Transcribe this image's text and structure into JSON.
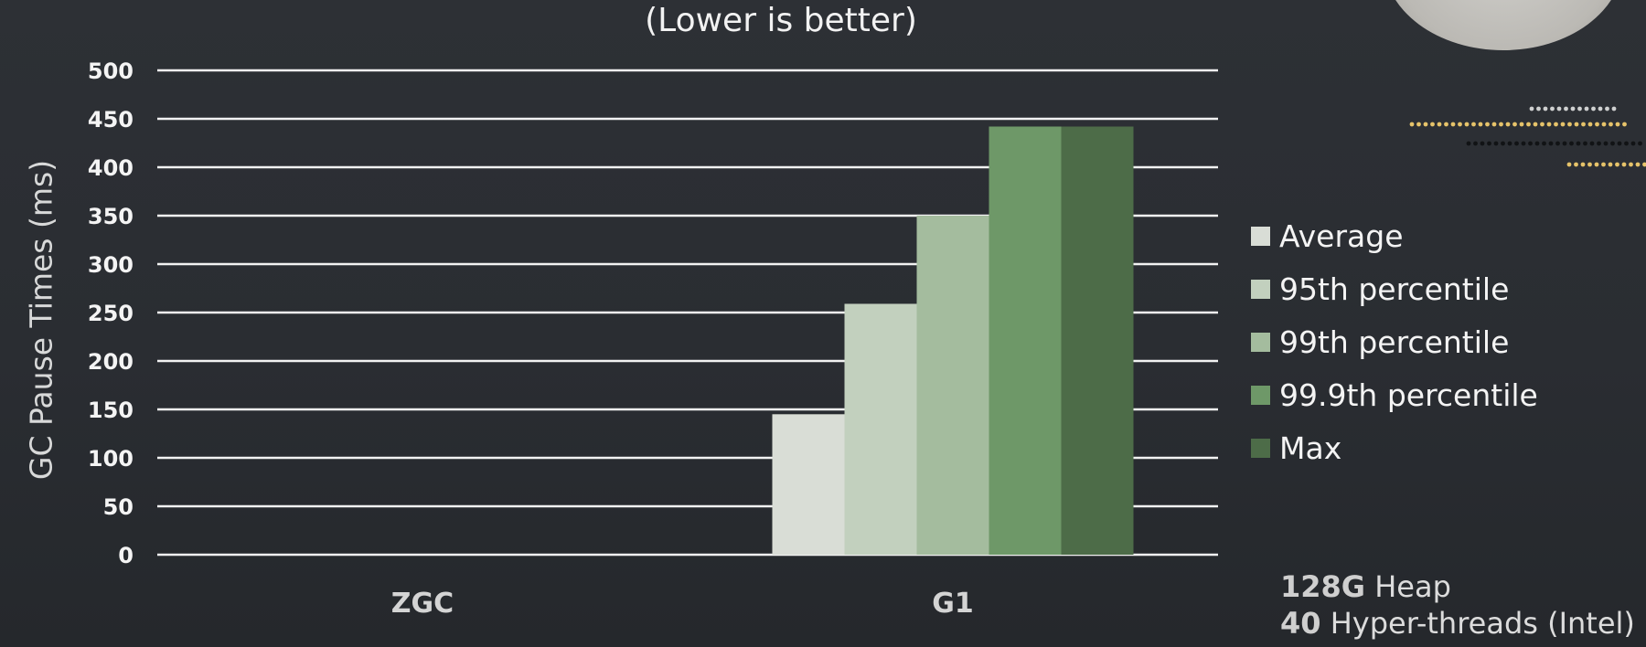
{
  "chart_data": {
    "type": "bar",
    "subtitle": "(Lower is better)",
    "ylabel": "GC Pause Times (ms)",
    "xlabel": "",
    "ylim": [
      0,
      500
    ],
    "yticks": [
      0,
      50,
      100,
      150,
      200,
      250,
      300,
      350,
      400,
      450,
      500
    ],
    "grid": true,
    "legend_position": "right",
    "categories": [
      "ZGC",
      "G1"
    ],
    "series": [
      {
        "name": "Average",
        "values": [
          0,
          145
        ],
        "color": "#d9ddd6"
      },
      {
        "name": "95th percentile",
        "values": [
          0,
          259
        ],
        "color": "#c2d0be"
      },
      {
        "name": "99th percentile",
        "values": [
          0,
          350
        ],
        "color": "#a4bc9e"
      },
      {
        "name": "99.9th percentile",
        "values": [
          0,
          442
        ],
        "color": "#6e9868"
      },
      {
        "name": "Max",
        "values": [
          0,
          442
        ],
        "color": "#4d6c48"
      }
    ]
  },
  "notes": [
    {
      "value": "128G",
      "text": " Heap"
    },
    {
      "value": "40",
      "text": " Hyper-threads (Intel)"
    }
  ]
}
